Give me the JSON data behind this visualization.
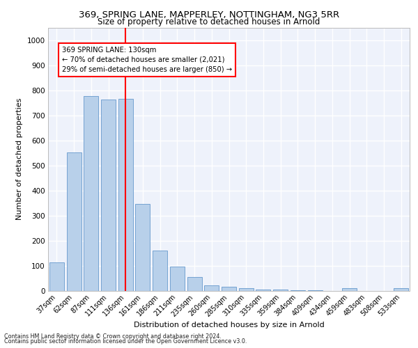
{
  "title1": "369, SPRING LANE, MAPPERLEY, NOTTINGHAM, NG3 5RR",
  "title2": "Size of property relative to detached houses in Arnold",
  "xlabel": "Distribution of detached houses by size in Arnold",
  "ylabel": "Number of detached properties",
  "categories": [
    "37sqm",
    "62sqm",
    "87sqm",
    "111sqm",
    "136sqm",
    "161sqm",
    "186sqm",
    "211sqm",
    "235sqm",
    "260sqm",
    "285sqm",
    "310sqm",
    "335sqm",
    "359sqm",
    "384sqm",
    "409sqm",
    "434sqm",
    "459sqm",
    "483sqm",
    "508sqm",
    "533sqm"
  ],
  "values": [
    113,
    553,
    778,
    763,
    765,
    345,
    160,
    97,
    53,
    20,
    15,
    10,
    5,
    3,
    2,
    1,
    0,
    10,
    0,
    0,
    10
  ],
  "bar_color": "#b8d0ea",
  "bar_edge_color": "#6699cc",
  "vline_x": 4,
  "vline_color": "red",
  "annotation_text": "369 SPRING LANE: 130sqm\n← 70% of detached houses are smaller (2,021)\n29% of semi-detached houses are larger (850) →",
  "annotation_box_color": "white",
  "annotation_box_edge_color": "red",
  "ylim": [
    0,
    1050
  ],
  "yticks": [
    0,
    100,
    200,
    300,
    400,
    500,
    600,
    700,
    800,
    900,
    1000
  ],
  "footer1": "Contains HM Land Registry data © Crown copyright and database right 2024.",
  "footer2": "Contains public sector information licensed under the Open Government Licence v3.0.",
  "background_color": "#eef2fb",
  "grid_color": "white"
}
